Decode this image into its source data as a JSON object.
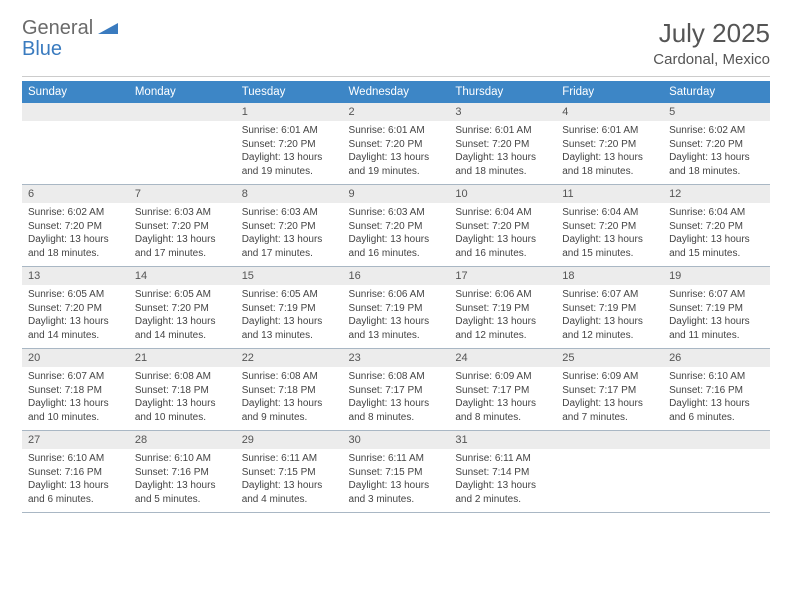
{
  "brand": {
    "general": "General",
    "blue": "Blue"
  },
  "title": "July 2025",
  "location": "Cardonal, Mexico",
  "colors": {
    "header_bg": "#3d86c6",
    "header_text": "#ffffff",
    "daynum_bg": "#ececec",
    "row_divider": "#a9b7c4",
    "logo_gray": "#6a6a6a",
    "logo_blue": "#3a7bbf"
  },
  "day_names": [
    "Sunday",
    "Monday",
    "Tuesday",
    "Wednesday",
    "Thursday",
    "Friday",
    "Saturday"
  ],
  "weeks": [
    [
      {
        "n": "",
        "lines": []
      },
      {
        "n": "",
        "lines": []
      },
      {
        "n": "1",
        "lines": [
          "Sunrise: 6:01 AM",
          "Sunset: 7:20 PM",
          "Daylight: 13 hours and 19 minutes."
        ]
      },
      {
        "n": "2",
        "lines": [
          "Sunrise: 6:01 AM",
          "Sunset: 7:20 PM",
          "Daylight: 13 hours and 19 minutes."
        ]
      },
      {
        "n": "3",
        "lines": [
          "Sunrise: 6:01 AM",
          "Sunset: 7:20 PM",
          "Daylight: 13 hours and 18 minutes."
        ]
      },
      {
        "n": "4",
        "lines": [
          "Sunrise: 6:01 AM",
          "Sunset: 7:20 PM",
          "Daylight: 13 hours and 18 minutes."
        ]
      },
      {
        "n": "5",
        "lines": [
          "Sunrise: 6:02 AM",
          "Sunset: 7:20 PM",
          "Daylight: 13 hours and 18 minutes."
        ]
      }
    ],
    [
      {
        "n": "6",
        "lines": [
          "Sunrise: 6:02 AM",
          "Sunset: 7:20 PM",
          "Daylight: 13 hours and 18 minutes."
        ]
      },
      {
        "n": "7",
        "lines": [
          "Sunrise: 6:03 AM",
          "Sunset: 7:20 PM",
          "Daylight: 13 hours and 17 minutes."
        ]
      },
      {
        "n": "8",
        "lines": [
          "Sunrise: 6:03 AM",
          "Sunset: 7:20 PM",
          "Daylight: 13 hours and 17 minutes."
        ]
      },
      {
        "n": "9",
        "lines": [
          "Sunrise: 6:03 AM",
          "Sunset: 7:20 PM",
          "Daylight: 13 hours and 16 minutes."
        ]
      },
      {
        "n": "10",
        "lines": [
          "Sunrise: 6:04 AM",
          "Sunset: 7:20 PM",
          "Daylight: 13 hours and 16 minutes."
        ]
      },
      {
        "n": "11",
        "lines": [
          "Sunrise: 6:04 AM",
          "Sunset: 7:20 PM",
          "Daylight: 13 hours and 15 minutes."
        ]
      },
      {
        "n": "12",
        "lines": [
          "Sunrise: 6:04 AM",
          "Sunset: 7:20 PM",
          "Daylight: 13 hours and 15 minutes."
        ]
      }
    ],
    [
      {
        "n": "13",
        "lines": [
          "Sunrise: 6:05 AM",
          "Sunset: 7:20 PM",
          "Daylight: 13 hours and 14 minutes."
        ]
      },
      {
        "n": "14",
        "lines": [
          "Sunrise: 6:05 AM",
          "Sunset: 7:20 PM",
          "Daylight: 13 hours and 14 minutes."
        ]
      },
      {
        "n": "15",
        "lines": [
          "Sunrise: 6:05 AM",
          "Sunset: 7:19 PM",
          "Daylight: 13 hours and 13 minutes."
        ]
      },
      {
        "n": "16",
        "lines": [
          "Sunrise: 6:06 AM",
          "Sunset: 7:19 PM",
          "Daylight: 13 hours and 13 minutes."
        ]
      },
      {
        "n": "17",
        "lines": [
          "Sunrise: 6:06 AM",
          "Sunset: 7:19 PM",
          "Daylight: 13 hours and 12 minutes."
        ]
      },
      {
        "n": "18",
        "lines": [
          "Sunrise: 6:07 AM",
          "Sunset: 7:19 PM",
          "Daylight: 13 hours and 12 minutes."
        ]
      },
      {
        "n": "19",
        "lines": [
          "Sunrise: 6:07 AM",
          "Sunset: 7:19 PM",
          "Daylight: 13 hours and 11 minutes."
        ]
      }
    ],
    [
      {
        "n": "20",
        "lines": [
          "Sunrise: 6:07 AM",
          "Sunset: 7:18 PM",
          "Daylight: 13 hours and 10 minutes."
        ]
      },
      {
        "n": "21",
        "lines": [
          "Sunrise: 6:08 AM",
          "Sunset: 7:18 PM",
          "Daylight: 13 hours and 10 minutes."
        ]
      },
      {
        "n": "22",
        "lines": [
          "Sunrise: 6:08 AM",
          "Sunset: 7:18 PM",
          "Daylight: 13 hours and 9 minutes."
        ]
      },
      {
        "n": "23",
        "lines": [
          "Sunrise: 6:08 AM",
          "Sunset: 7:17 PM",
          "Daylight: 13 hours and 8 minutes."
        ]
      },
      {
        "n": "24",
        "lines": [
          "Sunrise: 6:09 AM",
          "Sunset: 7:17 PM",
          "Daylight: 13 hours and 8 minutes."
        ]
      },
      {
        "n": "25",
        "lines": [
          "Sunrise: 6:09 AM",
          "Sunset: 7:17 PM",
          "Daylight: 13 hours and 7 minutes."
        ]
      },
      {
        "n": "26",
        "lines": [
          "Sunrise: 6:10 AM",
          "Sunset: 7:16 PM",
          "Daylight: 13 hours and 6 minutes."
        ]
      }
    ],
    [
      {
        "n": "27",
        "lines": [
          "Sunrise: 6:10 AM",
          "Sunset: 7:16 PM",
          "Daylight: 13 hours and 6 minutes."
        ]
      },
      {
        "n": "28",
        "lines": [
          "Sunrise: 6:10 AM",
          "Sunset: 7:16 PM",
          "Daylight: 13 hours and 5 minutes."
        ]
      },
      {
        "n": "29",
        "lines": [
          "Sunrise: 6:11 AM",
          "Sunset: 7:15 PM",
          "Daylight: 13 hours and 4 minutes."
        ]
      },
      {
        "n": "30",
        "lines": [
          "Sunrise: 6:11 AM",
          "Sunset: 7:15 PM",
          "Daylight: 13 hours and 3 minutes."
        ]
      },
      {
        "n": "31",
        "lines": [
          "Sunrise: 6:11 AM",
          "Sunset: 7:14 PM",
          "Daylight: 13 hours and 2 minutes."
        ]
      },
      {
        "n": "",
        "lines": []
      },
      {
        "n": "",
        "lines": []
      }
    ]
  ]
}
